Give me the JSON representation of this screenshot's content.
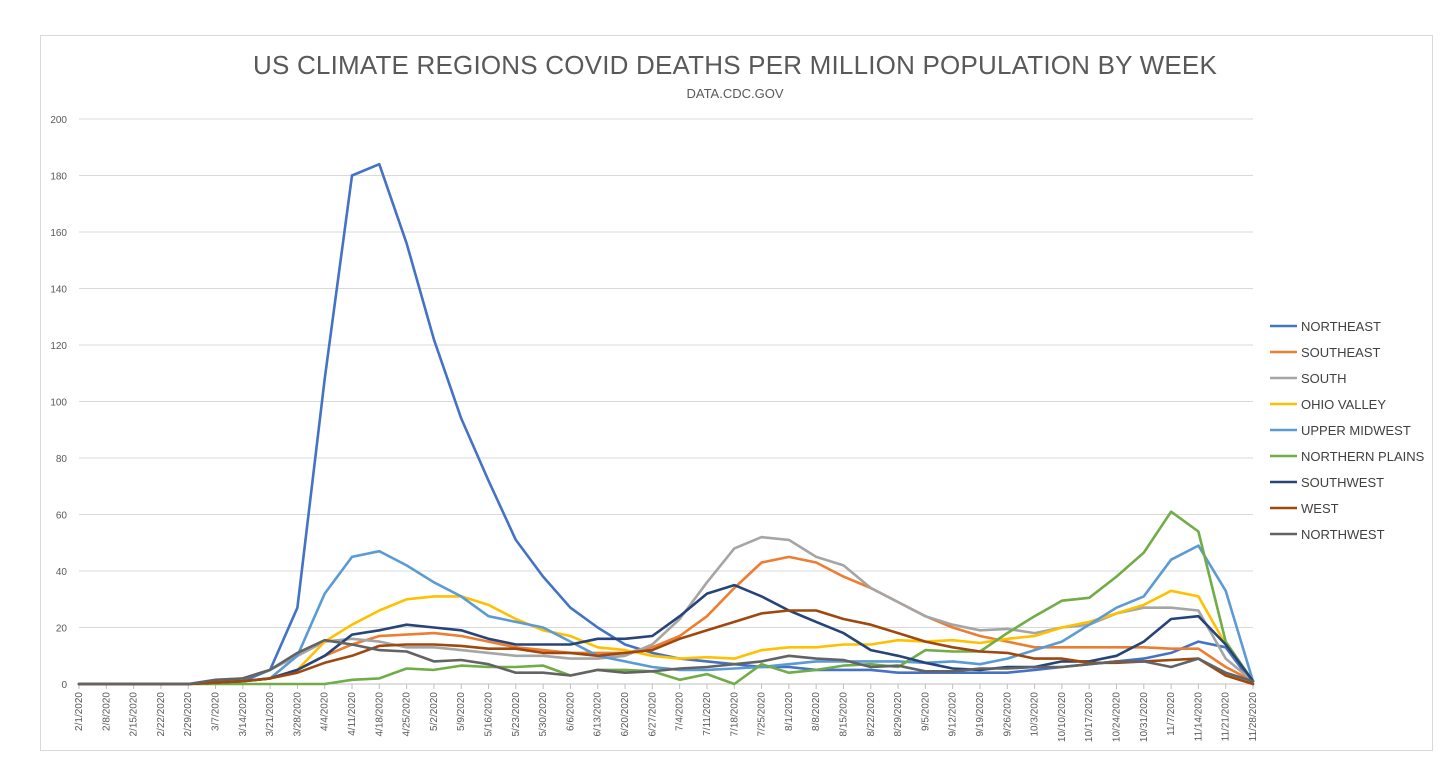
{
  "chart_data": {
    "type": "line",
    "title": "US CLIMATE REGIONS COVID DEATHS PER MILLION POPULATION BY WEEK",
    "subtitle": "DATA.CDC.GOV",
    "xlabel": "",
    "ylabel": "",
    "ylim": [
      0,
      200
    ],
    "yticks": [
      0,
      20,
      40,
      60,
      80,
      100,
      120,
      140,
      160,
      180,
      200
    ],
    "grid": true,
    "legend_position": "right",
    "categories": [
      "2/1/2020",
      "2/8/2020",
      "2/15/2020",
      "2/22/2020",
      "2/29/2020",
      "3/7/2020",
      "3/14/2020",
      "3/21/2020",
      "3/28/2020",
      "4/4/2020",
      "4/11/2020",
      "4/18/2020",
      "4/25/2020",
      "5/2/2020",
      "5/9/2020",
      "5/16/2020",
      "5/23/2020",
      "5/30/2020",
      "6/6/2020",
      "6/13/2020",
      "6/20/2020",
      "6/27/2020",
      "7/4/2020",
      "7/11/2020",
      "7/18/2020",
      "7/25/2020",
      "8/1/2020",
      "8/8/2020",
      "8/15/2020",
      "8/22/2020",
      "8/29/2020",
      "9/5/2020",
      "9/12/2020",
      "9/19/2020",
      "9/26/2020",
      "10/3/2020",
      "10/10/2020",
      "10/17/2020",
      "10/24/2020",
      "10/31/2020",
      "11/7/2020",
      "11/14/2020",
      "11/21/2020",
      "11/28/2020"
    ],
    "series": [
      {
        "name": "NORTHEAST",
        "color": "#4472c4",
        "values": [
          0,
          0,
          0,
          0,
          0,
          0.5,
          1,
          5,
          27,
          108,
          180,
          184,
          156,
          122,
          94,
          72,
          51,
          38,
          27,
          20,
          14,
          11,
          9,
          8,
          7,
          6,
          6,
          5,
          5,
          5,
          4,
          4,
          4,
          4,
          4,
          5,
          6,
          7,
          8,
          9,
          11,
          15,
          13,
          0
        ]
      },
      {
        "name": "SOUTHEAST",
        "color": "#ed7d31",
        "values": [
          0,
          0,
          0,
          0,
          0,
          0.5,
          1,
          2,
          5,
          10,
          14,
          17,
          17.5,
          18,
          17,
          15,
          13,
          12,
          11,
          11,
          11,
          13,
          17,
          24,
          34,
          43,
          45,
          43,
          38,
          34,
          29,
          24,
          20,
          17,
          15,
          13,
          13,
          13,
          13,
          13,
          12.5,
          12.5,
          6,
          1
        ]
      },
      {
        "name": "SOUTH",
        "color": "#a5a5a5",
        "values": [
          0,
          0,
          0,
          0,
          0,
          0.5,
          2,
          5,
          10,
          15,
          16,
          15,
          13,
          13,
          12,
          11,
          10,
          10,
          9,
          9,
          10,
          14,
          23,
          36,
          48,
          52,
          51,
          45,
          42,
          34,
          29,
          24,
          21,
          19,
          19.5,
          18,
          20,
          21,
          25,
          27,
          27,
          26,
          9,
          1
        ]
      },
      {
        "name": "OHIO VALLEY",
        "color": "#ffc000",
        "values": [
          0,
          0,
          0,
          0,
          0,
          0.5,
          1,
          2,
          5,
          15,
          21,
          26,
          30,
          31,
          31,
          28,
          23,
          19,
          17,
          13,
          12,
          10,
          9,
          9.5,
          9,
          12,
          13,
          13,
          14,
          14,
          15.5,
          15,
          15.5,
          14.5,
          16,
          17,
          20,
          22,
          25,
          28,
          33,
          31,
          14,
          1
        ]
      },
      {
        "name": "UPPER MIDWEST",
        "color": "#5b9bd5",
        "values": [
          0,
          0,
          0,
          0,
          0,
          0.5,
          1,
          2,
          10,
          32,
          45,
          47,
          42,
          36,
          31,
          24,
          22,
          20,
          15,
          10,
          8,
          6,
          5,
          5,
          5.5,
          6,
          7,
          8,
          8,
          8,
          8,
          7.5,
          8,
          7,
          9,
          12,
          15,
          21,
          27,
          31,
          44,
          49,
          33,
          1
        ]
      },
      {
        "name": "NORTHERN PLAINS",
        "color": "#70ad47",
        "values": [
          0,
          0,
          0,
          0,
          0,
          0,
          0,
          0,
          0,
          0,
          1.5,
          2,
          5.5,
          5,
          6.5,
          6,
          6,
          6.5,
          3,
          5,
          5,
          4.5,
          1.5,
          3.5,
          0,
          7,
          4,
          5,
          6.5,
          7,
          6,
          12,
          11.5,
          11.5,
          18,
          24,
          29.5,
          30.5,
          38,
          46.5,
          61,
          54,
          15,
          1
        ]
      },
      {
        "name": "SOUTHWEST",
        "color": "#264478",
        "values": [
          0,
          0,
          0,
          0,
          0,
          0.5,
          1,
          2,
          5,
          10,
          17.5,
          19,
          21,
          20,
          19,
          16,
          14,
          14,
          14,
          16,
          16,
          17,
          24,
          32,
          35,
          31,
          26,
          22,
          18,
          12,
          10,
          7.5,
          5.5,
          5,
          6,
          6,
          8,
          8,
          10,
          15,
          23,
          24,
          14,
          1
        ]
      },
      {
        "name": "WEST",
        "color": "#9e480e",
        "values": [
          0,
          0,
          0,
          0,
          0,
          0.5,
          1,
          2,
          4,
          7.5,
          10,
          13.5,
          14,
          14,
          13.5,
          12.5,
          12.5,
          11,
          11,
          10,
          11,
          12,
          16,
          19,
          22,
          25,
          26,
          26,
          23,
          21,
          18,
          15,
          13,
          11.5,
          11,
          9,
          9,
          7.5,
          7.5,
          8,
          8.5,
          9,
          3,
          0
        ]
      },
      {
        "name": "NORTHWEST",
        "color": "#636363",
        "values": [
          0,
          0,
          0,
          0,
          0,
          1.5,
          2,
          5,
          11,
          15.5,
          14,
          12,
          11.5,
          8,
          8.5,
          7,
          4,
          4,
          3,
          5,
          4,
          4.5,
          5.5,
          6,
          7,
          8,
          10,
          9,
          8.5,
          6,
          6.5,
          4.5,
          4.5,
          5.5,
          5.5,
          6,
          6,
          7,
          8,
          8,
          6,
          9,
          4,
          1
        ]
      }
    ]
  }
}
